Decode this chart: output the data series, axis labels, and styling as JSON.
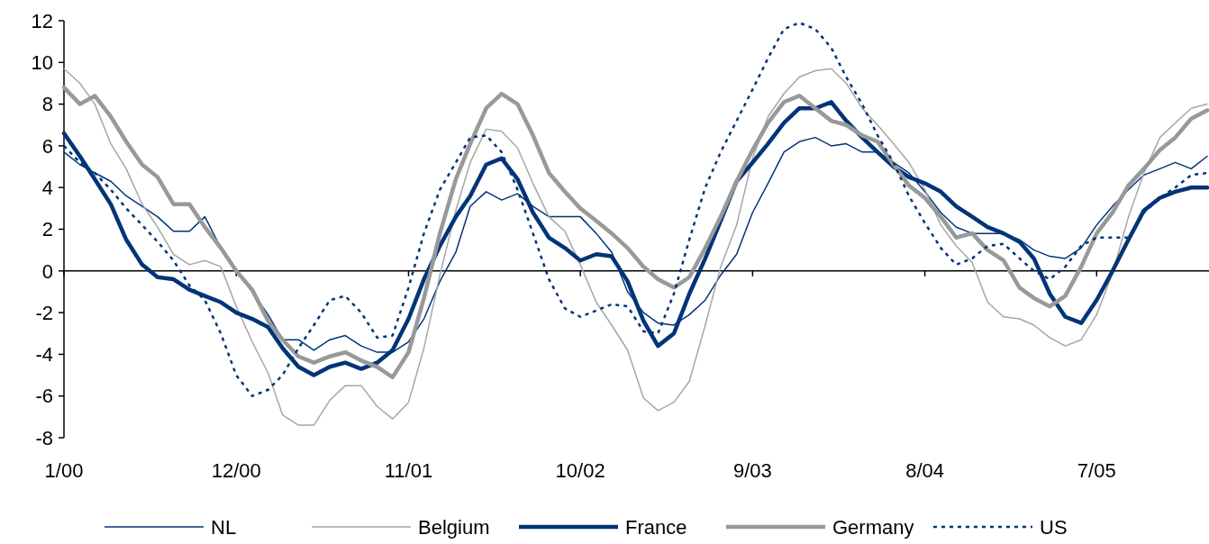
{
  "chart_data": {
    "type": "line",
    "x": [
      "2000-01",
      "2000-02",
      "2000-03",
      "2000-04",
      "2000-05",
      "2000-06",
      "2000-07",
      "2000-08",
      "2000-09",
      "2000-10",
      "2000-11",
      "2000-12",
      "2001-01",
      "2001-02",
      "2001-03",
      "2001-04",
      "2001-05",
      "2001-06",
      "2001-07",
      "2001-08",
      "2001-09",
      "2001-10",
      "2001-11",
      "2001-12",
      "2002-01",
      "2002-02",
      "2002-03",
      "2002-04",
      "2002-05",
      "2002-06",
      "2002-07",
      "2002-08",
      "2002-09",
      "2002-10",
      "2002-11",
      "2002-12",
      "2003-01",
      "2003-02",
      "2003-03",
      "2003-04",
      "2003-05",
      "2003-06",
      "2003-07",
      "2003-08",
      "2003-09",
      "2003-10",
      "2003-11",
      "2003-12",
      "2004-01",
      "2004-02",
      "2004-03",
      "2004-04",
      "2004-05",
      "2004-06",
      "2004-07",
      "2004-08",
      "2004-09",
      "2004-10",
      "2004-11",
      "2004-12",
      "2005-01",
      "2005-02",
      "2005-03",
      "2005-04",
      "2005-05",
      "2005-06",
      "2005-07",
      "2005-08",
      "2005-09",
      "2005-10",
      "2005-11",
      "2005-12",
      "2006-01",
      "2006-02"
    ],
    "series": [
      {
        "name": "NL",
        "color": "#003478",
        "values": [
          5.7,
          5.1,
          4.7,
          4.3,
          3.6,
          3.1,
          2.6,
          1.9,
          1.9,
          2.6,
          1.1,
          0.0,
          -1.0,
          -2.1,
          -3.3,
          -3.3,
          -3.8,
          -3.3,
          -3.1,
          -3.6,
          -3.9,
          -3.9,
          -3.4,
          -2.3,
          -0.5,
          0.9,
          3.1,
          3.8,
          3.4,
          3.7,
          3.1,
          2.6,
          2.6,
          2.6,
          1.8,
          0.9,
          -1.0,
          -2.0,
          -2.5,
          -2.6,
          -2.1,
          -1.4,
          -0.2,
          0.8,
          2.8,
          4.2,
          5.7,
          6.2,
          6.4,
          6.0,
          6.1,
          5.7,
          5.7,
          5.2,
          4.7,
          3.8,
          2.8,
          2.1,
          1.8,
          1.8,
          1.8,
          1.5,
          1.0,
          0.7,
          0.6,
          1.1,
          2.2,
          3.1,
          3.9,
          4.6,
          4.9,
          5.2,
          4.9,
          5.5
        ]
      },
      {
        "name": "Belgium",
        "color": "#a6a6a6",
        "values": [
          9.7,
          9.0,
          8.0,
          6.1,
          4.9,
          3.2,
          2.1,
          0.8,
          0.3,
          0.5,
          0.2,
          -1.7,
          -3.4,
          -4.9,
          -6.9,
          -7.4,
          -7.4,
          -6.2,
          -5.5,
          -5.5,
          -6.5,
          -7.1,
          -6.3,
          -3.7,
          -0.2,
          2.9,
          5.2,
          6.8,
          6.7,
          5.9,
          4.2,
          2.6,
          1.9,
          0.3,
          -1.5,
          -2.6,
          -3.8,
          -6.1,
          -6.7,
          -6.3,
          -5.3,
          -2.6,
          0.2,
          2.2,
          5.4,
          7.4,
          8.5,
          9.3,
          9.6,
          9.7,
          9.0,
          7.8,
          7.0,
          6.1,
          5.2,
          3.9,
          2.2,
          1.2,
          0.4,
          -1.5,
          -2.2,
          -2.3,
          -2.6,
          -3.2,
          -3.6,
          -3.3,
          -2.1,
          -0.1,
          2.6,
          4.7,
          6.4,
          7.1,
          7.8,
          8.0
        ]
      },
      {
        "name": "France",
        "color": "#003478",
        "values": [
          6.6,
          5.5,
          4.4,
          3.2,
          1.5,
          0.3,
          -0.3,
          -0.4,
          -0.9,
          -1.2,
          -1.5,
          -2.0,
          -2.3,
          -2.7,
          -3.7,
          -4.6,
          -5.0,
          -4.6,
          -4.4,
          -4.7,
          -4.4,
          -3.8,
          -2.3,
          -0.4,
          1.2,
          2.6,
          3.6,
          5.1,
          5.4,
          4.4,
          2.8,
          1.6,
          1.1,
          0.5,
          0.8,
          0.7,
          -0.5,
          -2.4,
          -3.6,
          -3.0,
          -1.1,
          0.6,
          2.4,
          4.3,
          5.2,
          6.1,
          7.1,
          7.8,
          7.8,
          8.1,
          7.2,
          6.4,
          5.7,
          5.0,
          4.5,
          4.2,
          3.8,
          3.1,
          2.6,
          2.1,
          1.8,
          1.4,
          0.6,
          -1.1,
          -2.2,
          -2.5,
          -1.4,
          0.0,
          1.5,
          2.9,
          3.5,
          3.8,
          4.0,
          4.0
        ]
      },
      {
        "name": "Germany",
        "color": "#999999",
        "values": [
          8.8,
          8.0,
          8.4,
          7.4,
          6.2,
          5.1,
          4.5,
          3.2,
          3.2,
          2.1,
          1.1,
          0.0,
          -0.9,
          -2.4,
          -3.3,
          -4.1,
          -4.4,
          -4.1,
          -3.9,
          -4.3,
          -4.6,
          -5.1,
          -3.9,
          -1.3,
          1.8,
          4.4,
          6.1,
          7.8,
          8.5,
          8.0,
          6.5,
          4.7,
          3.8,
          3.0,
          2.4,
          1.8,
          1.1,
          0.2,
          -0.4,
          -0.8,
          -0.3,
          1.1,
          2.6,
          4.3,
          5.8,
          7.1,
          8.1,
          8.4,
          7.8,
          7.2,
          7.0,
          6.5,
          6.2,
          5.1,
          4.1,
          3.5,
          2.6,
          1.6,
          1.8,
          1.0,
          0.5,
          -0.8,
          -1.3,
          -1.7,
          -1.2,
          0.2,
          1.8,
          2.8,
          4.1,
          4.9,
          5.8,
          6.4,
          7.3,
          7.7
        ]
      },
      {
        "name": "US",
        "color": "#003478",
        "line_style": "dotted",
        "values": [
          6.0,
          5.2,
          4.7,
          3.9,
          3.0,
          2.2,
          1.4,
          0.5,
          -0.7,
          -1.4,
          -3.0,
          -5.0,
          -6.0,
          -5.7,
          -5.0,
          -3.7,
          -2.6,
          -1.4,
          -1.2,
          -2.0,
          -3.2,
          -3.1,
          -0.8,
          1.8,
          3.9,
          5.2,
          6.4,
          6.5,
          5.7,
          3.9,
          1.8,
          -0.4,
          -1.8,
          -2.2,
          -1.9,
          -1.6,
          -1.7,
          -2.9,
          -3.0,
          -1.1,
          1.5,
          4.0,
          5.7,
          7.2,
          8.7,
          10.2,
          11.6,
          11.9,
          11.6,
          10.7,
          9.3,
          8.0,
          6.5,
          5.2,
          3.6,
          2.3,
          1.1,
          0.3,
          0.6,
          1.2,
          1.3,
          0.6,
          0.0,
          -0.4,
          0.2,
          1.2,
          1.6,
          1.6,
          1.6,
          2.8,
          3.5,
          4.0,
          4.6,
          4.7
        ]
      }
    ],
    "xlim": [
      "2000-01",
      "2006-02"
    ],
    "xticks": [
      {
        "value": "2000-01",
        "label": "1/00"
      },
      {
        "value": "2000-12",
        "label": "12/00"
      },
      {
        "value": "2001-11",
        "label": "11/01"
      },
      {
        "value": "2002-10",
        "label": "10/02"
      },
      {
        "value": "2003-09",
        "label": "9/03"
      },
      {
        "value": "2004-08",
        "label": "8/04"
      },
      {
        "value": "2005-07",
        "label": "7/05"
      }
    ],
    "ylim": [
      -8,
      12
    ],
    "yticks": [
      -8,
      -6,
      -4,
      -2,
      0,
      2,
      4,
      6,
      8,
      10,
      12
    ],
    "legend": "bottom",
    "line_style": "solid"
  }
}
